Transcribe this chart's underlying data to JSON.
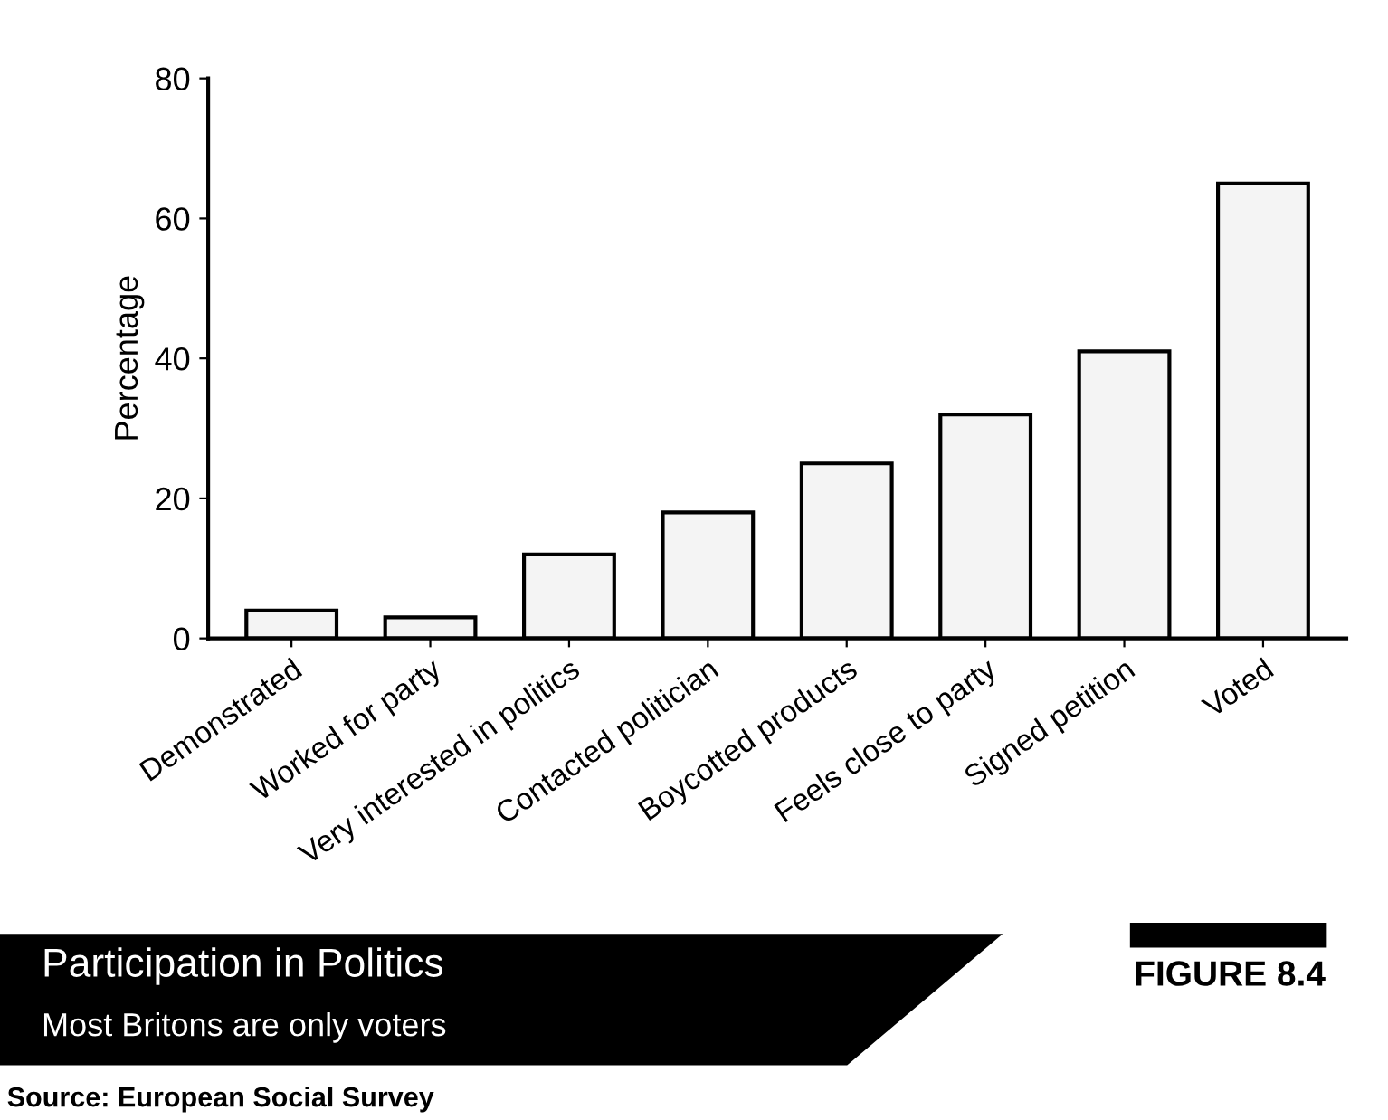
{
  "chart_data": {
    "type": "bar",
    "title": "Participation in Politics",
    "subtitle": "Most Britons are only voters",
    "ylabel": "Percentage",
    "categories": [
      "Demonstrated",
      "Worked for party",
      "Very interested in politics",
      "Contacted politician",
      "Boycotted products",
      "Feels close to party",
      "Signed petition",
      "Voted"
    ],
    "values": [
      4,
      3,
      12,
      18,
      25,
      32,
      41,
      65
    ],
    "color": "#f4f4f4",
    "ylim": [
      0,
      80
    ],
    "yticks": [
      0,
      20,
      40,
      60,
      80
    ],
    "grid": false,
    "annotations": [
      "FIGURE 8.4",
      "Source: European Social Survey"
    ]
  }
}
